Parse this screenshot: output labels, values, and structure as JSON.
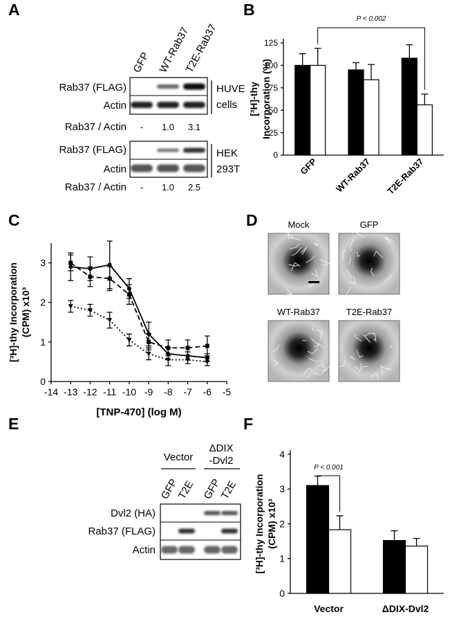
{
  "panel_labels": [
    "A",
    "B",
    "C",
    "D",
    "E",
    "F"
  ],
  "blot_a": {
    "lanes": [
      "GFP",
      "WT-Rab37",
      "T2E-Rab37"
    ],
    "blots": [
      {
        "rows": [
          "Rab37 (FLAG)",
          "Actin"
        ],
        "cell_line": [
          "HUVE",
          "cells"
        ],
        "ratio_label": "Rab37 / Actin",
        "ratios": [
          "-",
          "1.0",
          "3.1"
        ]
      },
      {
        "rows": [
          "Rab37 (FLAG)",
          "Actin"
        ],
        "cell_line": [
          "HEK",
          "293T"
        ],
        "ratio_label": "Rab37 / Actin",
        "ratios": [
          "-",
          "1.0",
          "2.5"
        ]
      }
    ]
  },
  "images_d": {
    "labels": [
      "Mock",
      "GFP",
      "WT-Rab37",
      "T2E-Rab37"
    ]
  },
  "blot_e": {
    "groups": [
      [
        "Vector"
      ],
      [
        "ΔDIX",
        "-Dvl2"
      ]
    ],
    "lanes": [
      "GFP",
      "T2E",
      "GFP",
      "T2E"
    ],
    "rows": [
      "Dvl2 (HA)",
      "Rab37 (FLAG)",
      "Actin"
    ]
  },
  "chart_data": [
    {
      "type": "bar",
      "ylabel": [
        "[³H]-thy",
        "Incorporation (%)"
      ],
      "categories": [
        "GFP",
        "WT-Rab37",
        "T2E-Rab37"
      ],
      "series": [
        {
          "color": "#000000",
          "values": [
            100,
            95,
            108
          ],
          "errors": [
            13,
            8,
            15
          ]
        },
        {
          "color": "#ffffff",
          "values": [
            100,
            84,
            56
          ],
          "errors": [
            19,
            17,
            12
          ]
        }
      ],
      "ylim": [
        0,
        125
      ],
      "yticks": [
        0,
        25,
        50,
        75,
        100,
        125
      ],
      "annotation": "P < 0.002"
    },
    {
      "type": "line",
      "ylabel": [
        "[³H]-thy Incorporation",
        "(CPM) x10³"
      ],
      "xlabel": "[TNP-470] (log M)",
      "x": [
        -13,
        -12,
        -11,
        -10,
        -9,
        -8,
        -7,
        -6
      ],
      "series": [
        {
          "color": "#000000",
          "style": "solid",
          "values": [
            2.9,
            2.85,
            2.95,
            2.35,
            1.2,
            0.7,
            0.65,
            0.6
          ],
          "errors": [
            0.35,
            0.3,
            0.6,
            0.25,
            0.3,
            0.15,
            0.1,
            0.1
          ]
        },
        {
          "color": "#000000",
          "style": "dashed",
          "values": [
            3.0,
            2.65,
            2.6,
            2.2,
            1.0,
            0.85,
            0.85,
            0.9
          ],
          "errors": [
            0.2,
            0.25,
            0.3,
            0.25,
            0.2,
            0.2,
            0.2,
            0.25
          ]
        },
        {
          "color": "#000000",
          "style": "dotted",
          "values": [
            1.9,
            1.8,
            1.55,
            1.05,
            0.7,
            0.55,
            0.55,
            0.5
          ],
          "errors": [
            0.15,
            0.15,
            0.2,
            0.15,
            0.15,
            0.15,
            0.1,
            0.1
          ]
        }
      ],
      "xlim": [
        -14,
        -5
      ],
      "xticks": [
        -14,
        -13,
        -12,
        -11,
        -10,
        -9,
        -8,
        -7,
        -6,
        -5
      ],
      "ylim": [
        0,
        3.5
      ],
      "yticks": [
        0,
        1,
        2,
        3
      ]
    },
    {
      "type": "bar",
      "ylabel": [
        "[³H]-thy Incorporation",
        "(CPM) x10³"
      ],
      "categories": [
        "Vector",
        "ΔDIX-Dvl2"
      ],
      "series": [
        {
          "color": "#000000",
          "values": [
            3.1,
            1.52
          ],
          "errors": [
            0.27,
            0.28
          ]
        },
        {
          "color": "#ffffff",
          "values": [
            1.83,
            1.36
          ],
          "errors": [
            0.4,
            0.22
          ]
        }
      ],
      "ylim": [
        0,
        4
      ],
      "yticks": [
        0,
        1,
        2,
        3,
        4
      ],
      "annotation": "P < 0.001"
    }
  ]
}
